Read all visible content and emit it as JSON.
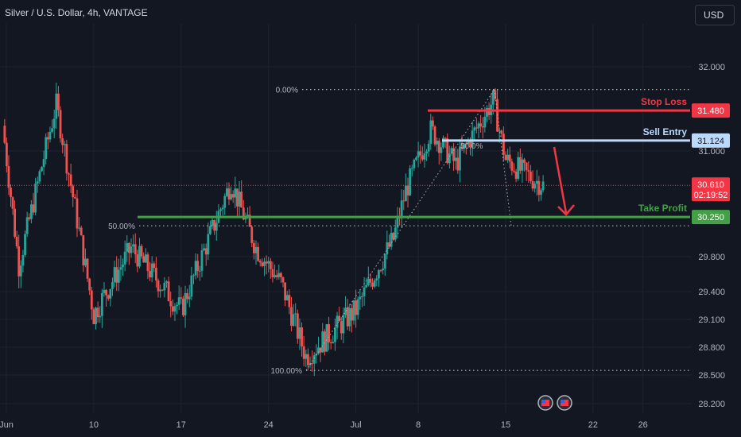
{
  "header": {
    "title": "Silver / U.S. Dollar, 4h, VANTAGE",
    "currency_button": "USD"
  },
  "colors": {
    "background": "#131722",
    "up": "#26a69a",
    "down": "#ef5350",
    "stop_loss": "#f23645",
    "sell_entry": "#bbd9fb",
    "take_profit": "#43a047",
    "current_price": "#f23645"
  },
  "chart_data": {
    "type": "candlestick",
    "symbol": "Silver / U.S. Dollar",
    "interval": "4h",
    "y_ticks": [
      "32.000",
      "31.000",
      "29.800",
      "29.400",
      "29.100",
      "28.800",
      "28.500",
      "28.200"
    ],
    "y_tick_values": [
      32.0,
      31.0,
      29.8,
      29.4,
      29.1,
      28.8,
      28.5,
      28.2
    ],
    "x_ticks": [
      "Jun",
      "10",
      "17",
      "24",
      "Jul",
      "8",
      "15",
      "22",
      "26"
    ],
    "levels": [
      {
        "name": "Stop Loss",
        "value": 31.48,
        "tag": "31.480"
      },
      {
        "name": "Sell Entry",
        "value": 31.124,
        "tag": "31.124"
      },
      {
        "name": "Take Profit",
        "value": 30.25,
        "tag": "30.250"
      }
    ],
    "fib_levels": [
      {
        "label": "0.00%",
        "value": 31.73
      },
      {
        "label": "50.00%",
        "value": 30.15
      },
      {
        "label": "100.00%",
        "value": 28.55
      }
    ],
    "fib_label_inner": "50.0%",
    "current_price": {
      "value": "30.610",
      "countdown": "02:19:52"
    },
    "anchor_points": [
      {
        "x": "Jun",
        "y": 31.3
      },
      {
        "x": "Jun 4",
        "y": 29.7
      },
      {
        "x": "Jun 7",
        "y": 31.55
      },
      {
        "x": "Jun 10",
        "y": 29.15
      },
      {
        "x": "Jun 13",
        "y": 29.9
      },
      {
        "x": "Jun 17",
        "y": 29.2
      },
      {
        "x": "Jun 21",
        "y": 30.65
      },
      {
        "x": "Jun 23",
        "y": 29.9
      },
      {
        "x": "Jun 25",
        "y": 29.5
      },
      {
        "x": "Jun 27",
        "y": 28.7
      },
      {
        "x": "Jul 1",
        "y": 29.2
      },
      {
        "x": "Jul 4",
        "y": 30.0
      },
      {
        "x": "Jul 5",
        "y": 30.55
      },
      {
        "x": "Jul 7",
        "y": 31.25
      },
      {
        "x": "Jul 9",
        "y": 30.85
      },
      {
        "x": "Jul 12",
        "y": 31.6
      },
      {
        "x": "Jul 13",
        "y": 30.9
      },
      {
        "x": "Jul 15",
        "y": 30.7
      },
      {
        "x": "Jul 16",
        "y": 30.61
      }
    ]
  }
}
